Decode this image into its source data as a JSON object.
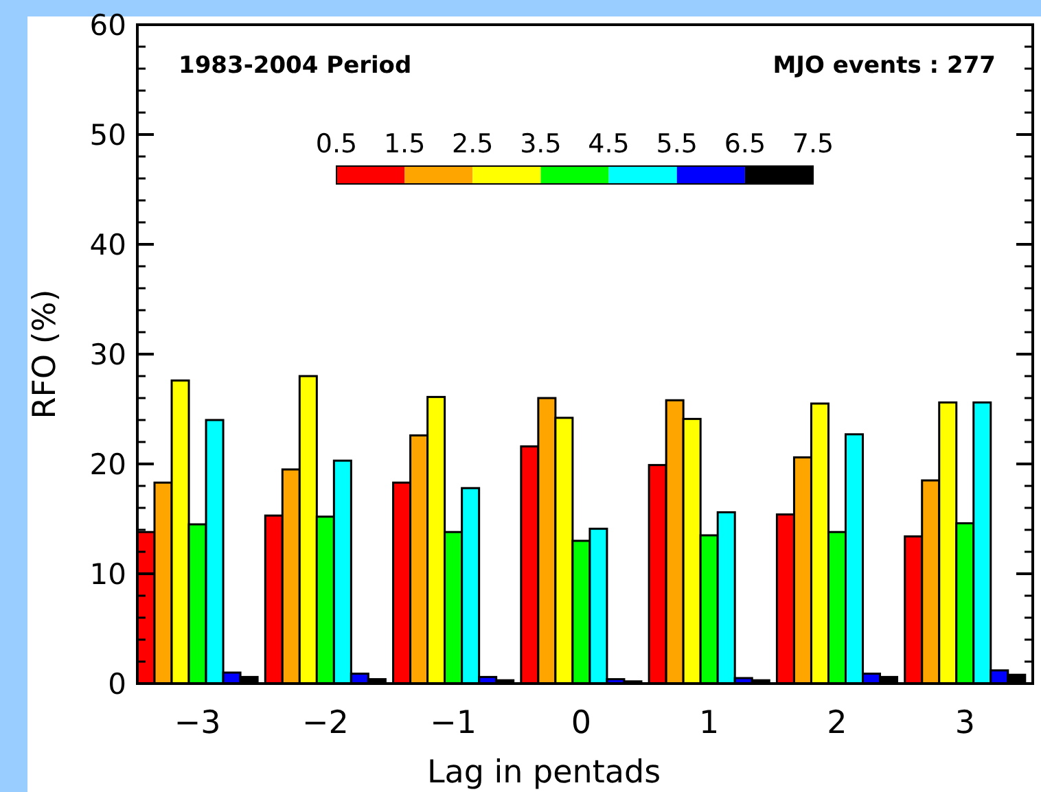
{
  "chart_data": {
    "type": "bar",
    "xlabel": "Lag in pentads",
    "ylabel": "RFO (%)",
    "categories": [
      "−3",
      "−2",
      "−1",
      "0",
      "1",
      "2",
      "3"
    ],
    "series": [
      {
        "color": "#ff0000",
        "values": [
          13.8,
          15.3,
          18.3,
          21.6,
          19.9,
          15.4,
          13.4
        ]
      },
      {
        "color": "#ffa500",
        "values": [
          18.3,
          19.5,
          22.6,
          26.0,
          25.8,
          20.6,
          18.5
        ]
      },
      {
        "color": "#ffff00",
        "values": [
          27.6,
          28.0,
          26.1,
          24.2,
          24.1,
          25.5,
          25.6
        ]
      },
      {
        "color": "#00ff00",
        "values": [
          14.5,
          15.2,
          13.8,
          13.0,
          13.5,
          13.8,
          14.6
        ]
      },
      {
        "color": "#00ffff",
        "values": [
          24.0,
          20.3,
          17.8,
          14.1,
          15.6,
          22.7,
          25.6
        ]
      },
      {
        "color": "#0000ff",
        "values": [
          1.0,
          0.9,
          0.6,
          0.4,
          0.5,
          0.9,
          1.2
        ]
      },
      {
        "color": "#000000",
        "values": [
          0.6,
          0.4,
          0.3,
          0.2,
          0.3,
          0.6,
          0.8
        ]
      }
    ],
    "ylim": [
      0,
      60
    ],
    "yticks": [
      0,
      10,
      20,
      30,
      40,
      50,
      60
    ],
    "annotations": [
      "1983-2004 Period",
      "MJO events : 277",
      "0.5",
      "1.5",
      "2.5",
      "3.5",
      "4.5",
      "5.5",
      "6.5",
      "7.5"
    ]
  }
}
